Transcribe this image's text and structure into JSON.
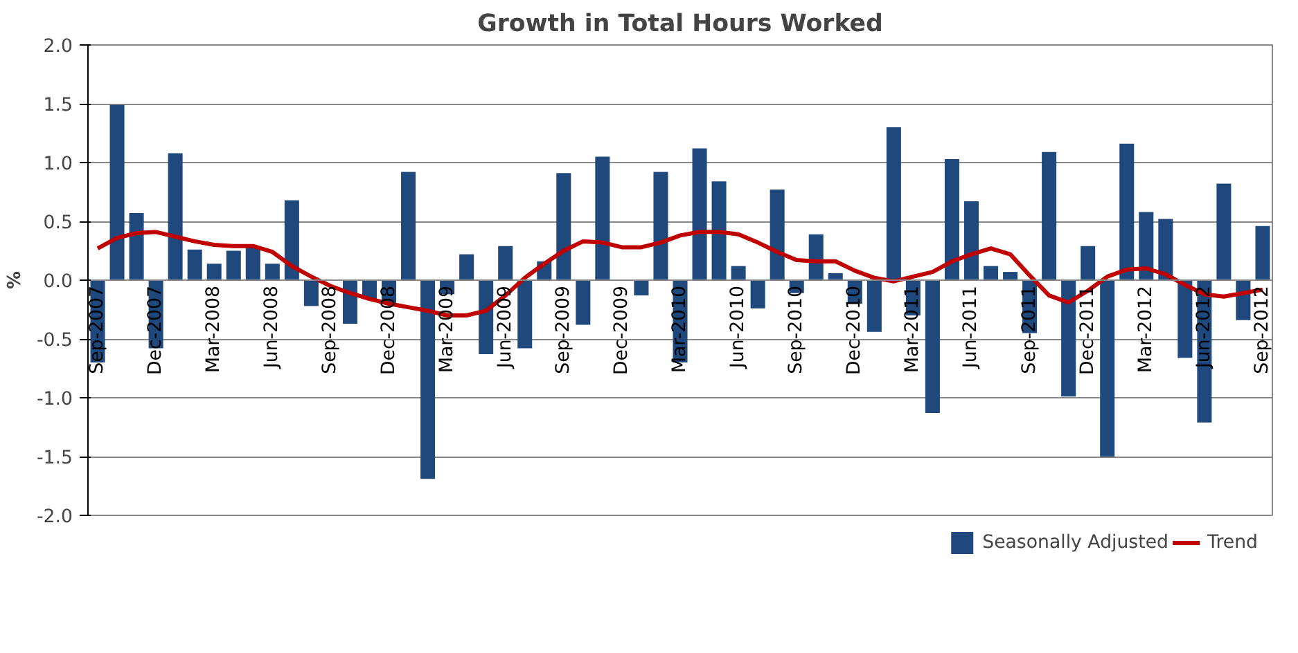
{
  "chart_data": {
    "type": "bar",
    "title": "Growth in Total Hours Worked",
    "ylabel": "%",
    "categories": [
      "Sep-2007",
      null,
      null,
      "Dec-2007",
      null,
      null,
      "Mar-2008",
      null,
      null,
      "Jun-2008",
      null,
      null,
      "Sep-2008",
      null,
      null,
      "Dec-2008",
      null,
      null,
      "Mar-2009",
      null,
      null,
      "Jun-2009",
      null,
      null,
      "Sep-2009",
      null,
      null,
      "Dec-2009",
      null,
      null,
      "Mar-2010",
      null,
      null,
      "Jun-2010",
      null,
      null,
      "Sep-2010",
      null,
      null,
      "Dec-2010",
      null,
      null,
      "Mar-2011",
      null,
      null,
      "Jun-2011",
      null,
      null,
      "Sep-2011",
      null,
      null,
      "Dec-2011",
      null,
      null,
      "Mar-2012",
      null,
      null,
      "Jun-2012",
      null,
      null,
      "Sep-2012"
    ],
    "series": [
      {
        "name": "Seasonally Adjusted",
        "color": "#1f497d",
        "values": [
          -0.7,
          1.49,
          0.57,
          -0.58,
          1.08,
          0.26,
          0.14,
          0.25,
          0.28,
          0.14,
          0.68,
          -0.22,
          null,
          -0.37,
          -0.16,
          -0.2,
          0.92,
          -1.69,
          -0.12,
          0.22,
          -0.63,
          0.29,
          -0.58,
          0.16,
          0.91,
          -0.38,
          1.05,
          0.0,
          -0.13,
          0.92,
          -0.7,
          1.12,
          0.84,
          0.12,
          -0.24,
          0.77,
          -0.11,
          0.39,
          0.06,
          -0.2,
          -0.44,
          1.3,
          -0.3,
          -1.13,
          1.03,
          0.67,
          0.12,
          0.07,
          -0.45,
          1.09,
          -0.99,
          0.29,
          -1.5,
          1.16,
          0.58,
          0.52,
          -0.66,
          -1.21,
          0.82,
          -0.34,
          0.46
        ]
      },
      {
        "name": "Trend",
        "type": "line",
        "color": "#c00000",
        "values": [
          0.27,
          0.36,
          0.4,
          0.41,
          0.37,
          0.33,
          0.3,
          0.29,
          0.29,
          0.24,
          0.12,
          0.03,
          -0.05,
          -0.11,
          -0.16,
          -0.2,
          -0.23,
          -0.26,
          -0.3,
          -0.3,
          -0.26,
          -0.13,
          0.02,
          0.14,
          0.25,
          0.33,
          0.32,
          0.28,
          0.28,
          0.32,
          0.38,
          0.41,
          0.41,
          0.39,
          0.32,
          0.24,
          0.17,
          0.16,
          0.16,
          0.08,
          0.02,
          -0.01,
          0.03,
          0.07,
          0.16,
          0.22,
          0.27,
          0.22,
          0.04,
          -0.13,
          -0.19,
          -0.09,
          0.03,
          0.09,
          0.1,
          0.05,
          -0.04,
          -0.12,
          -0.14,
          -0.11,
          -0.08
        ]
      }
    ],
    "ylim": [
      -2.0,
      2.0
    ],
    "yticks": [
      {
        "value": -2.0,
        "label": "-2.0"
      },
      {
        "value": -1.5,
        "label": "-1.5"
      },
      {
        "value": -1.0,
        "label": "-1.0"
      },
      {
        "value": -0.5,
        "label": "-0.5"
      },
      {
        "value": 0,
        "label": "0.0"
      },
      {
        "value": 0.5,
        "label": "0.5"
      },
      {
        "value": 1.0,
        "label": "1.0"
      },
      {
        "value": 1.5,
        "label": "1.5"
      },
      {
        "value": 2.0,
        "label": "2.0"
      }
    ],
    "grid": "y",
    "legend": "bottom",
    "marker": "none",
    "line_style": "solid"
  }
}
